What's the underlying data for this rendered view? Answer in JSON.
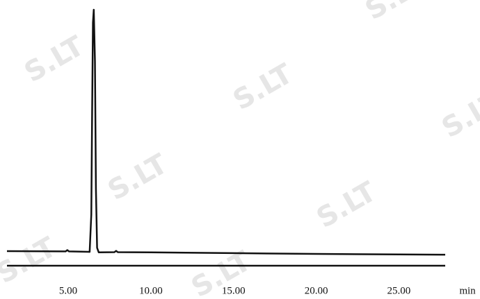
{
  "chart_data": {
    "type": "line",
    "watermark": "S.LT",
    "x_label": "min",
    "x": [
      1.3,
      4.85,
      4.95,
      5.05,
      6.3,
      6.4,
      6.45,
      6.5,
      6.55,
      6.62,
      6.68,
      6.75,
      6.85,
      7.8,
      7.9,
      8.0,
      10,
      15,
      20,
      25,
      27.8
    ],
    "series": [
      {
        "color": "#111111",
        "values": [
          5.7,
          5.6,
          6.1,
          5.6,
          5.4,
          20,
          60,
          95,
          100,
          80,
          30,
          7,
          5.2,
          5.3,
          5.8,
          5.3,
          5.2,
          4.9,
          4.6,
          4.4,
          4.3
        ]
      }
    ],
    "xlim": [
      1.3,
      27.8
    ],
    "ylim": [
      0,
      100
    ],
    "xticks": [
      {
        "value": 5,
        "label": "5.00"
      },
      {
        "value": 10,
        "label": "10.00"
      },
      {
        "value": 15,
        "label": "15.00"
      },
      {
        "value": 20,
        "label": "20.00"
      },
      {
        "value": 25,
        "label": "25.00"
      }
    ]
  }
}
